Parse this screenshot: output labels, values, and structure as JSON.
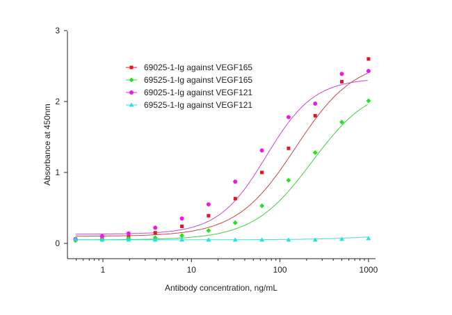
{
  "chart_data": {
    "type": "scatter",
    "title": "",
    "xlabel": "Antibody concentration, ng/mL",
    "ylabel": "Absorbance at 450nm",
    "xscale": "log",
    "xlim": [
      0.44,
      1200
    ],
    "ylim": [
      -0.21,
      3
    ],
    "xticks": [
      1,
      10,
      100,
      1000
    ],
    "xtick_labels": [
      "1",
      "10",
      "100",
      "1000"
    ],
    "yticks": [
      0,
      1,
      2,
      3
    ],
    "ytick_labels": [
      "0",
      "1",
      "2",
      "3"
    ],
    "grid": false,
    "legend_position": "top-left",
    "x": [
      0.49,
      0.98,
      1.95,
      3.9,
      7.8,
      15.6,
      31.25,
      62.5,
      125,
      250,
      500,
      1000
    ],
    "series": [
      {
        "name": "69025-1-Ig against VEGF165",
        "color": "#e8141e",
        "marker": "square",
        "values": [
          0.06,
          0.08,
          0.09,
          0.15,
          0.24,
          0.39,
          0.63,
          1.0,
          1.34,
          1.8,
          2.28,
          2.6
        ]
      },
      {
        "name": "69525-1-Ig against VEGF165",
        "color": "#22e222",
        "marker": "diamond",
        "values": [
          0.04,
          0.05,
          0.07,
          0.08,
          0.11,
          0.18,
          0.29,
          0.53,
          0.89,
          1.28,
          1.71,
          2.01
        ]
      },
      {
        "name": "69025-1-Ig against VEGF121",
        "color": "#ee18ee",
        "marker": "circle",
        "values": [
          0.06,
          0.1,
          0.14,
          0.22,
          0.35,
          0.55,
          0.87,
          1.31,
          1.78,
          1.97,
          2.39,
          2.43
        ]
      },
      {
        "name": "69525-1-Ig against VEGF121",
        "color": "#22e0e6",
        "marker": "triangle",
        "values": [
          0.06,
          0.05,
          0.05,
          0.05,
          0.05,
          0.05,
          0.05,
          0.05,
          0.05,
          0.05,
          0.06,
          0.07
        ]
      }
    ]
  }
}
